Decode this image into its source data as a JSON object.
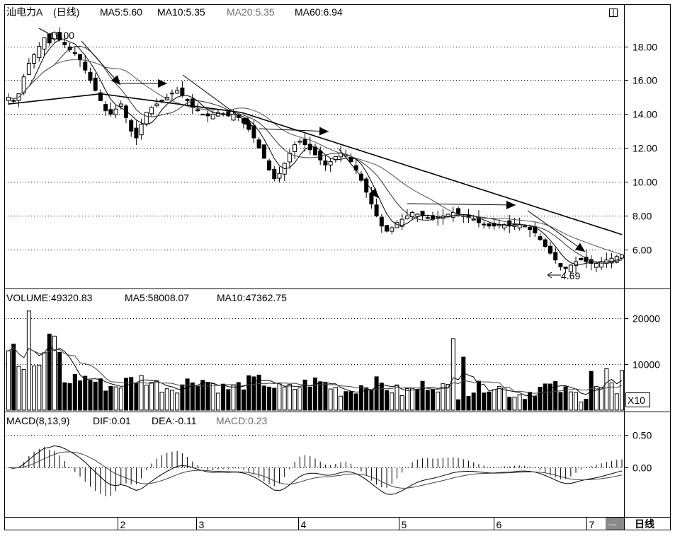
{
  "header": {
    "security": "汕电力A",
    "period_tag": "(日线)",
    "ma5": "MA5:5.60",
    "ma10": "MA10:5.35",
    "ma20": "MA20:5.35",
    "ma60": "MA60:6.94"
  },
  "volume_header": {
    "volume": "VOLUME:49320.83",
    "ma5": "MA5:58008.07",
    "ma10": "MA10:47362.75"
  },
  "macd_header": {
    "name": "MACD(8,13,9)",
    "dif": "DIF:0.01",
    "dea": "DEA:-0.11",
    "macd": "MACD:0.23"
  },
  "footer": {
    "dash_button": "---",
    "period_button": "日线",
    "multiplier": "X10"
  },
  "annotations": {
    "high": "19.00",
    "low": "4.69"
  },
  "chart_data": [
    {
      "type": "candlestick",
      "price_axis_ticks": [
        "18.00",
        "16.00",
        "14.00",
        "12.00",
        "10.00",
        "8.00",
        "6.00"
      ],
      "ylim": [
        3.8,
        20.4
      ],
      "month_labels": [
        "2",
        "3",
        "4",
        "5",
        "6",
        "7"
      ],
      "high": 19.0,
      "low": 4.69,
      "close_approx": [
        15.0,
        14.8,
        15.2,
        16.2,
        17.0,
        17.5,
        18.0,
        18.5,
        18.2,
        18.8,
        18.4,
        18.1,
        17.8,
        17.6,
        17.2,
        16.6,
        16.0,
        15.4,
        14.8,
        14.2,
        14.0,
        14.3,
        14.6,
        13.8,
        13.0,
        12.6,
        13.4,
        14.1,
        14.4,
        14.6,
        14.8,
        15.0,
        15.2,
        15.4,
        15.1,
        14.8,
        14.4,
        14.2,
        14.0,
        13.9,
        14.0,
        14.1,
        14.0,
        13.9,
        14.0,
        13.8,
        13.5,
        13.1,
        12.6,
        12.0,
        11.4,
        10.7,
        10.2,
        10.5,
        11.1,
        11.7,
        12.2,
        12.4,
        12.2,
        11.9,
        11.6,
        11.3,
        11.0,
        11.2,
        11.5,
        11.7,
        11.6,
        11.2,
        10.7,
        10.1,
        9.4,
        8.7,
        8.0,
        7.4,
        7.1,
        7.3,
        7.6,
        7.8,
        8.0,
        8.2,
        8.1,
        8.0,
        7.9,
        7.8,
        7.9,
        8.0,
        8.1,
        8.2,
        8.1,
        8.0,
        7.9,
        7.8,
        7.6,
        7.5,
        7.4,
        7.4,
        7.5,
        7.5,
        7.4,
        7.5,
        7.5,
        7.4,
        7.2,
        7.0,
        6.6,
        6.2,
        5.8,
        5.4,
        5.0,
        4.9,
        5.1,
        5.3,
        5.4,
        5.3,
        5.2,
        5.2,
        5.3,
        5.4,
        5.5,
        5.6,
        5.7
      ],
      "ma60_line": "descends from about 14.6 to about 6.9",
      "trend_arrows": 8
    },
    {
      "type": "bar",
      "series_name": "VOLUME",
      "axis_ticks": [
        "20000",
        "10000"
      ],
      "ylim": [
        0,
        23000
      ],
      "multiplier": "X10",
      "volume": 49320.83,
      "ma5": 58008.07,
      "ma10": 47362.75
    },
    {
      "type": "bar",
      "series_name": "MACD",
      "axis_ticks": [
        "0.50",
        "0.00"
      ],
      "ylim": [
        -0.72,
        0.62
      ],
      "dif": 0.01,
      "dea": -0.11,
      "macd": 0.23
    }
  ]
}
